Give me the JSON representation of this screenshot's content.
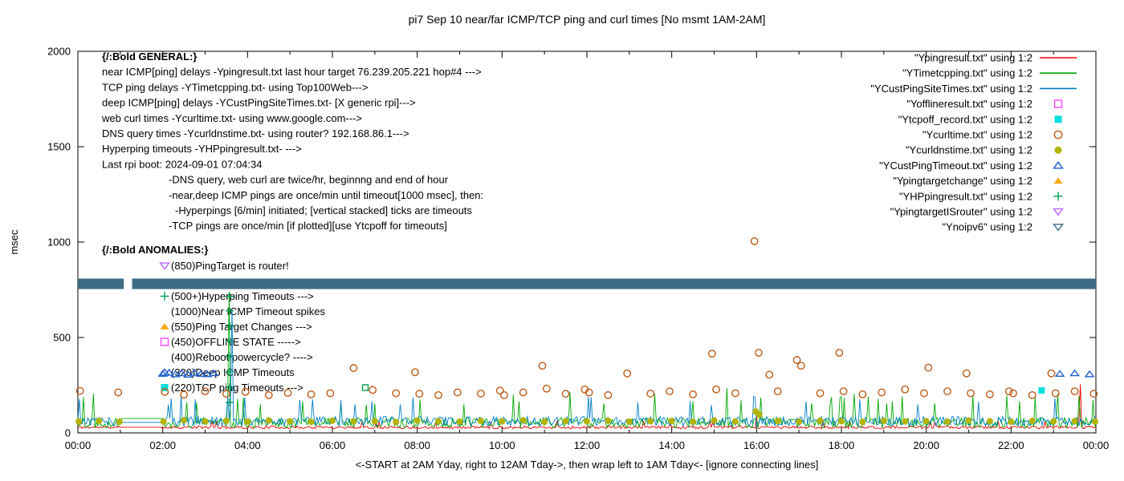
{
  "chart_data": {
    "type": "line",
    "title": "pi7 Sep 10  near/far ICMP/TCP ping and curl times [No msmt 1AM-2AM]",
    "xlabel": "<-START at 2AM Yday, right to 12AM Tday->, then wrap left to 1AM Tday<- [ignore connecting lines]",
    "ylabel": "msec",
    "xlim": [
      0,
      24
    ],
    "ylim": [
      0,
      2000
    ],
    "grid": false,
    "legend_position": "top-right",
    "xtick_labels": [
      "00:00",
      "02:00",
      "04:00",
      "06:00",
      "08:00",
      "10:00",
      "12:00",
      "14:00",
      "16:00",
      "18:00",
      "20:00",
      "22:00",
      "00:00"
    ],
    "yticks": [
      0,
      500,
      1000,
      1500,
      2000
    ],
    "no_measurement_window": [
      1.0,
      2.0
    ],
    "series": [
      {
        "name": "Ypingresult.txt",
        "kind": "line",
        "color": "#ee0000",
        "base": 22,
        "jitter": 14,
        "tall_prob": 0.02,
        "gap_value": 30,
        "seed": 11,
        "spikes": [
          [
            16.0,
            90
          ],
          [
            23.62,
            255
          ]
        ]
      },
      {
        "name": "YTimetcpping.txt",
        "kind": "line",
        "color": "#00a800",
        "base": 26,
        "jitter": 55,
        "tall_prob": 0.035,
        "gap_value": 75,
        "seed": 22,
        "spikes": [
          [
            0.35,
            205
          ],
          [
            2.55,
            160
          ],
          [
            3.58,
            740
          ],
          [
            4.3,
            150
          ],
          [
            5.3,
            165
          ],
          [
            6.2,
            150
          ],
          [
            7.0,
            155
          ],
          [
            8.05,
            175
          ],
          [
            9.1,
            150
          ],
          [
            10.4,
            165
          ],
          [
            11.6,
            215
          ],
          [
            12.4,
            155
          ],
          [
            13.6,
            205
          ],
          [
            14.5,
            165
          ],
          [
            15.3,
            235
          ],
          [
            16.1,
            185
          ],
          [
            17.3,
            155
          ],
          [
            18.3,
            205
          ],
          [
            19.2,
            165
          ],
          [
            20.2,
            155
          ],
          [
            21.1,
            195
          ],
          [
            22.2,
            165
          ],
          [
            23.1,
            205
          ]
        ]
      },
      {
        "name": "YCustPingSiteTimes.txt",
        "kind": "line",
        "color": "#0080c8",
        "base": 36,
        "jitter": 50,
        "tall_prob": 0.03,
        "gap_value": 55,
        "seed": 33,
        "spikes": [
          [
            2.2,
            180
          ],
          [
            3.62,
            650
          ],
          [
            7.6,
            150
          ],
          [
            13.2,
            160
          ],
          [
            19.8,
            150
          ]
        ]
      },
      {
        "name": "Yofflineresult.txt",
        "kind": "scatter",
        "marker": "square-open",
        "color": "#ff44ff",
        "points": []
      },
      {
        "name": "Ytcpoff_record.txt",
        "kind": "scatter",
        "marker": "square-filled",
        "color": "#00e0e0",
        "points": [
          [
            22.72,
            222
          ]
        ]
      },
      {
        "name": "Ycurltime.txt",
        "kind": "scatter",
        "marker": "circle-open",
        "color": "#bf5b17",
        "points": [
          [
            0.05,
            220
          ],
          [
            0.95,
            212
          ],
          [
            2.05,
            215
          ],
          [
            2.5,
            200
          ],
          [
            3.0,
            218
          ],
          [
            3.5,
            205
          ],
          [
            3.95,
            215
          ],
          [
            4.5,
            198
          ],
          [
            4.95,
            210
          ],
          [
            5.5,
            202
          ],
          [
            5.95,
            208
          ],
          [
            6.5,
            340
          ],
          [
            6.95,
            225
          ],
          [
            7.5,
            208
          ],
          [
            7.95,
            318
          ],
          [
            8.05,
            205
          ],
          [
            8.5,
            198
          ],
          [
            8.95,
            212
          ],
          [
            9.5,
            206
          ],
          [
            9.95,
            222
          ],
          [
            10.05,
            198
          ],
          [
            10.5,
            212
          ],
          [
            10.95,
            352
          ],
          [
            11.05,
            232
          ],
          [
            11.5,
            205
          ],
          [
            11.95,
            228
          ],
          [
            12.05,
            212
          ],
          [
            12.5,
            198
          ],
          [
            12.95,
            312
          ],
          [
            13.5,
            206
          ],
          [
            13.95,
            218
          ],
          [
            14.5,
            202
          ],
          [
            14.95,
            415
          ],
          [
            15.05,
            228
          ],
          [
            15.5,
            208
          ],
          [
            15.95,
            1005
          ],
          [
            16.05,
            420
          ],
          [
            16.3,
            305
          ],
          [
            16.5,
            218
          ],
          [
            16.95,
            382
          ],
          [
            17.05,
            352
          ],
          [
            17.5,
            208
          ],
          [
            17.95,
            420
          ],
          [
            18.05,
            218
          ],
          [
            18.5,
            202
          ],
          [
            18.95,
            212
          ],
          [
            19.5,
            228
          ],
          [
            19.95,
            208
          ],
          [
            20.05,
            342
          ],
          [
            20.5,
            218
          ],
          [
            20.95,
            312
          ],
          [
            21.05,
            208
          ],
          [
            21.5,
            202
          ],
          [
            21.95,
            218
          ],
          [
            22.05,
            208
          ],
          [
            22.5,
            198
          ],
          [
            22.95,
            312
          ],
          [
            23.05,
            208
          ],
          [
            23.5,
            218
          ],
          [
            23.95,
            205
          ]
        ]
      },
      {
        "name": "Ycurldnstime.txt",
        "kind": "scatter",
        "marker": "circle-filled",
        "color": "#b3b300",
        "points": [
          [
            0.02,
            60
          ],
          [
            0.5,
            63
          ],
          [
            0.98,
            58
          ],
          [
            2.02,
            59
          ],
          [
            2.5,
            66
          ],
          [
            3,
            60
          ],
          [
            3.5,
            63
          ],
          [
            4,
            59
          ],
          [
            4.5,
            65
          ],
          [
            5,
            61
          ],
          [
            5.5,
            58
          ],
          [
            6,
            64
          ],
          [
            6.5,
            60
          ],
          [
            7,
            62
          ],
          [
            7.5,
            57
          ],
          [
            8,
            65
          ],
          [
            8.5,
            61
          ],
          [
            9,
            59
          ],
          [
            9.5,
            63
          ],
          [
            10,
            60
          ],
          [
            10.5,
            66
          ],
          [
            11,
            58
          ],
          [
            11.5,
            62
          ],
          [
            12,
            60
          ],
          [
            12.5,
            64
          ],
          [
            13,
            59
          ],
          [
            13.5,
            61
          ],
          [
            14,
            63
          ],
          [
            14.5,
            58
          ],
          [
            15,
            65
          ],
          [
            15.5,
            60
          ],
          [
            15.98,
            112
          ],
          [
            16.06,
            95
          ],
          [
            16.5,
            62
          ],
          [
            17,
            59
          ],
          [
            17.5,
            64
          ],
          [
            18,
            61
          ],
          [
            18.5,
            58
          ],
          [
            19,
            63
          ],
          [
            19.5,
            60
          ],
          [
            20,
            62
          ],
          [
            20.5,
            59
          ],
          [
            21,
            65
          ],
          [
            21.5,
            61
          ],
          [
            22,
            58
          ],
          [
            22.5,
            63
          ],
          [
            23,
            60
          ],
          [
            23.5,
            62
          ],
          [
            23.98,
            60
          ]
        ]
      },
      {
        "name": "YCustPingTimeout.txt",
        "kind": "scatter",
        "marker": "triangle-up-open",
        "color": "#2060cc",
        "points": [
          [
            2.0,
            310
          ],
          [
            2.15,
            316
          ],
          [
            2.3,
            308
          ],
          [
            2.45,
            313
          ],
          [
            2.6,
            306
          ],
          [
            2.75,
            316
          ],
          [
            2.9,
            310
          ],
          [
            3.05,
            308
          ],
          [
            3.2,
            313
          ],
          [
            23.15,
            310
          ],
          [
            23.5,
            313
          ],
          [
            23.85,
            308
          ]
        ]
      },
      {
        "name": "Ypingtargetchange",
        "kind": "scatter",
        "marker": "triangle-up-filled",
        "color": "#ffa500",
        "points": []
      },
      {
        "name": "YHPpingresult.txt",
        "kind": "scatter",
        "marker": "plus",
        "color": "#00a050",
        "points": [
          [
            3.58,
            160
          ],
          [
            3.58,
            240
          ],
          [
            3.58,
            320
          ],
          [
            3.58,
            400
          ],
          [
            3.58,
            480
          ],
          [
            3.58,
            560
          ],
          [
            3.58,
            640
          ],
          [
            3.58,
            715
          ],
          [
            10.63,
            782
          ],
          [
            14.92,
            782
          ],
          [
            23.3,
            782
          ]
        ]
      },
      {
        "name": "YpingtargetISrouter",
        "kind": "scatter",
        "marker": "triangle-down-open",
        "color": "#bb66ff",
        "points": []
      },
      {
        "name": "Ynoipv6",
        "kind": "band",
        "marker": "triangle-down-open",
        "color": "#3d6a85",
        "y_low": 754,
        "y_high": 809,
        "segments": [
          [
            0,
            1.08
          ],
          [
            1.28,
            24
          ]
        ]
      }
    ]
  },
  "legend": [
    {
      "label": "\"Ypingresult.txt\" using 1:2",
      "marker": "line",
      "color": "#ee0000"
    },
    {
      "label": "\"YTimetcpping.txt\" using 1:2",
      "marker": "line",
      "color": "#00a800"
    },
    {
      "label": "\"YCustPingSiteTimes.txt\" using 1:2",
      "marker": "line",
      "color": "#0080c8"
    },
    {
      "label": "\"Yofflineresult.txt\" using 1:2",
      "marker": "square-open",
      "color": "#ff44ff"
    },
    {
      "label": "\"Ytcpoff_record.txt\" using 1:2",
      "marker": "square-filled",
      "color": "#00e0e0"
    },
    {
      "label": "\"Ycurltime.txt\" using 1:2",
      "marker": "circle-open",
      "color": "#bf5b17"
    },
    {
      "label": "\"Ycurldnstime.txt\" using 1:2",
      "marker": "circle-filled",
      "color": "#b3b300"
    },
    {
      "label": "\"YCustPingTimeout.txt\" using 1:2",
      "marker": "triangle-up-open",
      "color": "#2060cc"
    },
    {
      "label": "\"Ypingtargetchange\" using 1:2",
      "marker": "triangle-up-filled",
      "color": "#ffa500"
    },
    {
      "label": "\"YHPpingresult.txt\" using 1:2",
      "marker": "plus",
      "color": "#00a050"
    },
    {
      "label": "\"YpingtargetISrouter\" using 1:2",
      "marker": "triangle-down-open",
      "color": "#bb66ff"
    },
    {
      "label": "\"Ynoipv6\" using 1:2",
      "marker": "triangle-down-open",
      "color": "#3d6a85"
    }
  ],
  "annotations": {
    "general": {
      "header": "{/:Bold GENERAL:}",
      "lines": [
        {
          "text": "near ICMP[ping] delays -Ypingresult.txt last hour target 76.239.205.221 hop#4 --->"
        },
        {
          "text": "TCP ping delays -YTimetcpping.txt- using Top100Web--->"
        },
        {
          "text": "deep ICMP[ping] delays -YCustPingSiteTimes.txt- [X generic rpi]--->"
        },
        {
          "text": "web curl times -Ycurltime.txt- using www.google.com--->"
        },
        {
          "text": "DNS query times -Ycurldnstime.txt- using router? 192.168.86.1--->"
        },
        {
          "text": "Hyperping timeouts -YHPpingresult.txt- --->"
        },
        {
          "text": "Last rpi boot: 2024-09-01 07:04:34"
        },
        {
          "text": "-DNS query, web curl are twice/hr, beginnng and end of hour",
          "indent": 1
        },
        {
          "text": "-near,deep ICMP pings are once/min until timeout[1000 msec], then:",
          "indent": 1
        },
        {
          "text": "-Hyperpings [6/min] initiated; [vertical stacked] ticks are timeouts",
          "indent": 2
        },
        {
          "text": "-TCP pings are once/min [if plotted][use Ytcpoff for timeouts]",
          "indent": 1
        }
      ]
    },
    "anomalies": {
      "header": "{/:Bold ANOMALIES:}",
      "items": [
        {
          "marker": "triangle-down-open",
          "color": "#bb66ff",
          "text": "(850)PingTarget is router!"
        },
        {
          "marker": "plus",
          "color": "#00a050",
          "text": "(500+)Hyperping Timeouts --->"
        },
        {
          "marker": "",
          "color": "",
          "text": "(1000)Near ICMP Timeout spikes"
        },
        {
          "marker": "triangle-up-filled",
          "color": "#ffa500",
          "text": "(550)Ping Target Changes --->"
        },
        {
          "marker": "square-open",
          "color": "#ff44ff",
          "text": "(450)OFFLINE STATE ----->"
        },
        {
          "marker": "",
          "color": "",
          "text": "(400)Reboot/powercycle? ---->"
        },
        {
          "marker": "triangle-up-open",
          "color": "#2060cc",
          "text": "(320)Deep ICMP Timeouts"
        },
        {
          "marker": "square-filled",
          "color": "#00e0e0",
          "text": "(220)TCP ping Timeouts --->",
          "trailing_marker": "square-open",
          "trailing_color": "#00a050"
        }
      ]
    }
  }
}
